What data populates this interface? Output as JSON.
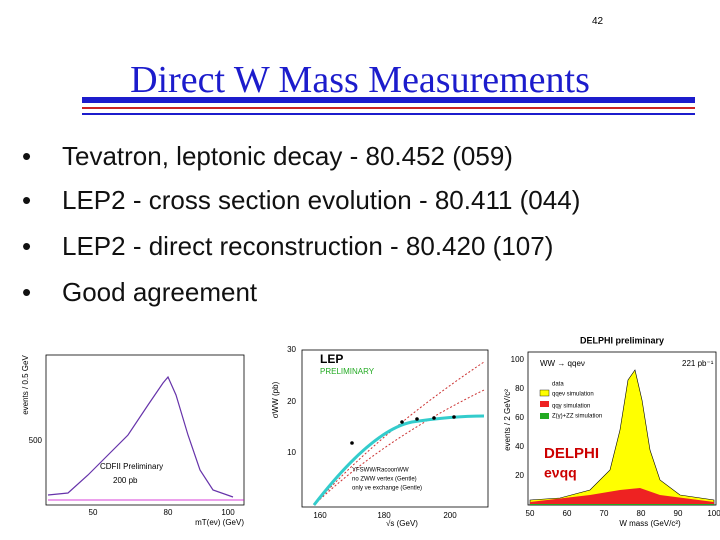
{
  "page_number": "42",
  "title": "Direct W Mass Measurements",
  "bullets": [
    "Tevatron, leptonic decay - 80.452 (059)",
    "LEP2 - cross section evolution - 80.411 (044)",
    "LEP2 - direct reconstruction - 80.420 (107)",
    "Good agreement"
  ],
  "figures": [
    {
      "y_label": "events / 0.5 GeV",
      "y_ticks": [
        "500"
      ],
      "x_ticks": [
        "50",
        "80",
        "100"
      ],
      "x_label": "mT(eν) (GeV)",
      "label": "CDFII Preliminary",
      "luminosity": "200 pb"
    },
    {
      "y_label": "σWW (pb)",
      "y_ticks": [
        "30",
        "20",
        "10"
      ],
      "x_ticks": [
        "160",
        "180",
        "200"
      ],
      "x_label": "√s (GeV)",
      "label": "LEP",
      "sublabel": "PRELIMINARY",
      "legend": [
        "YFSWW/RacoonWW",
        "no ZWW vertex (Gentle)",
        "only νe exchange (Gentle)"
      ]
    },
    {
      "title": "DELPHI preliminary",
      "channel": "WW → qqeν",
      "luminosity": "221 pb⁻¹",
      "legend": [
        "data",
        "qqeν simulation",
        "qqγ simulation",
        "Z(γ)+ZZ simulation"
      ],
      "y_label": "events / 2 GeV/c²",
      "y_ticks": [
        "100",
        "80",
        "60",
        "40",
        "20"
      ],
      "x_ticks": [
        "50",
        "60",
        "70",
        "80",
        "90",
        "100"
      ],
      "x_label": "W mass (GeV/c²)",
      "label": "DELPHI",
      "sublabel": "eνqq"
    }
  ]
}
